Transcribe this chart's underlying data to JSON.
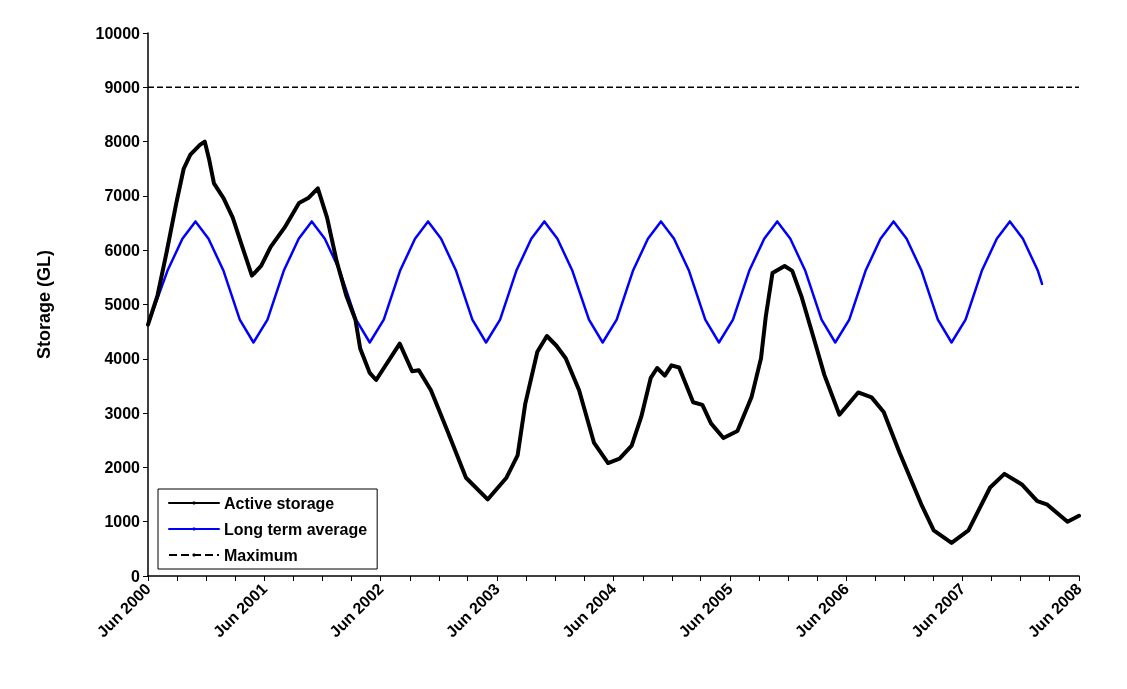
{
  "chart_data": {
    "type": "line",
    "ylabel": "Storage (GL)",
    "xlim": [
      "2000-06-01",
      "2008-06-01"
    ],
    "ylim": [
      0,
      10000
    ],
    "yticks": [
      0,
      1000,
      2000,
      3000,
      4000,
      5000,
      6000,
      7000,
      8000,
      9000,
      10000
    ],
    "xticks": [
      {
        "value": "2000-06-01",
        "label": "Jun 2000"
      },
      {
        "value": "2000-09-01",
        "label": null
      },
      {
        "value": "2000-12-01",
        "label": null
      },
      {
        "value": "2001-03-01",
        "label": null
      },
      {
        "value": "2001-06-01",
        "label": "Jun 2001"
      },
      {
        "value": "2001-09-01",
        "label": null
      },
      {
        "value": "2001-12-01",
        "label": null
      },
      {
        "value": "2002-03-01",
        "label": null
      },
      {
        "value": "2002-06-01",
        "label": "Jun 2002"
      },
      {
        "value": "2002-09-01",
        "label": null
      },
      {
        "value": "2002-12-01",
        "label": null
      },
      {
        "value": "2003-03-01",
        "label": null
      },
      {
        "value": "2003-06-01",
        "label": "Jun 2003"
      },
      {
        "value": "2003-09-01",
        "label": null
      },
      {
        "value": "2003-12-01",
        "label": null
      },
      {
        "value": "2004-03-01",
        "label": null
      },
      {
        "value": "2004-06-01",
        "label": "Jun 2004"
      },
      {
        "value": "2004-09-01",
        "label": null
      },
      {
        "value": "2004-12-01",
        "label": null
      },
      {
        "value": "2005-03-01",
        "label": null
      },
      {
        "value": "2005-06-01",
        "label": "Jun 2005"
      },
      {
        "value": "2005-09-01",
        "label": null
      },
      {
        "value": "2005-12-01",
        "label": null
      },
      {
        "value": "2006-03-01",
        "label": null
      },
      {
        "value": "2006-06-01",
        "label": "Jun 2006"
      },
      {
        "value": "2006-09-01",
        "label": null
      },
      {
        "value": "2006-12-01",
        "label": null
      },
      {
        "value": "2007-03-01",
        "label": null
      },
      {
        "value": "2007-06-01",
        "label": "Jun 2007"
      },
      {
        "value": "2007-09-01",
        "label": null
      },
      {
        "value": "2007-12-01",
        "label": null
      },
      {
        "value": "2008-03-01",
        "label": null
      },
      {
        "value": "2008-06-01",
        "label": "Jun 2008"
      }
    ],
    "grid": false,
    "legend": "bottom left",
    "marker": "none",
    "ref_lines": [
      {
        "axis": "y",
        "value": 9000,
        "label": "Maximum",
        "color": "#000000",
        "line_style": "dashed"
      }
    ],
    "series": [
      {
        "name": "Active storage",
        "color": "#000000",
        "x": [
          "2000-06-01",
          "2000-07-01",
          "2000-07-30",
          "2000-08-29",
          "2000-09-21",
          "2000-10-12",
          "2000-11-11",
          "2000-11-26",
          "2000-12-10",
          "2000-12-25",
          "2001-01-24",
          "2001-02-22",
          "2001-03-24",
          "2001-04-08",
          "2001-04-23",
          "2001-05-22",
          "2001-06-21",
          "2001-08-04",
          "2001-09-18",
          "2001-10-17",
          "2001-11-16",
          "2001-12-15",
          "2002-01-14",
          "2002-02-13",
          "2002-03-14",
          "2002-03-29",
          "2002-04-28",
          "2002-05-18",
          "2002-07-31",
          "2002-09-08",
          "2002-09-29",
          "2002-11-06",
          "2002-12-26",
          "2003-02-24",
          "2003-05-03",
          "2003-07-01",
          "2003-08-05",
          "2003-08-29",
          "2003-10-06",
          "2003-11-05",
          "2003-12-05",
          "2004-01-03",
          "2004-02-14",
          "2004-04-01",
          "2004-05-15",
          "2004-06-20",
          "2004-07-28",
          "2004-08-27",
          "2004-09-26",
          "2004-10-16",
          "2004-11-09",
          "2004-11-30",
          "2004-12-24",
          "2005-02-06",
          "2005-03-07",
          "2005-04-03",
          "2005-05-12",
          "2005-06-25",
          "2005-08-08",
          "2005-09-07",
          "2005-09-22",
          "2005-10-13",
          "2005-11-20",
          "2005-12-14",
          "2006-01-13",
          "2006-02-23",
          "2006-03-25",
          "2006-05-11",
          "2006-07-09",
          "2006-08-20",
          "2006-09-27",
          "2006-11-16",
          "2007-01-23",
          "2007-03-03",
          "2007-04-28",
          "2007-06-20",
          "2007-08-27",
          "2007-10-11",
          "2007-12-06",
          "2008-01-22",
          "2008-02-21",
          "2008-04-26",
          "2008-06-01"
        ],
        "values": [
          4630,
          5170,
          5980,
          6870,
          7500,
          7760,
          7940,
          8000,
          7670,
          7230,
          6960,
          6600,
          6060,
          5800,
          5530,
          5710,
          6060,
          6420,
          6870,
          6960,
          7140,
          6600,
          5800,
          5170,
          4720,
          4190,
          3740,
          3610,
          4280,
          3770,
          3790,
          3420,
          2700,
          1810,
          1410,
          1810,
          2220,
          3170,
          4130,
          4420,
          4240,
          4010,
          3420,
          2450,
          2080,
          2160,
          2400,
          2930,
          3650,
          3830,
          3690,
          3880,
          3840,
          3200,
          3150,
          2810,
          2540,
          2670,
          3290,
          4010,
          4780,
          5580,
          5710,
          5620,
          5130,
          4310,
          3700,
          2970,
          3380,
          3290,
          3020,
          2270,
          1320,
          840,
          610,
          840,
          1630,
          1880,
          1680,
          1380,
          1320,
          1000,
          1110
        ]
      },
      {
        "name": "Long term average",
        "color": "#0000ff",
        "x": [
          "2000-06-01",
          "2000-08-01",
          "2000-09-17",
          "2000-10-28",
          "2000-12-08",
          "2001-01-24",
          "2001-03-16",
          "2001-04-28",
          "2001-06-11",
          "2001-08-01",
          "2001-09-17",
          "2001-10-28",
          "2001-12-08",
          "2002-01-24",
          "2002-03-16",
          "2002-04-28",
          "2002-06-11",
          "2002-08-01",
          "2002-09-17",
          "2002-10-28",
          "2002-12-08",
          "2003-01-24",
          "2003-03-16",
          "2003-04-28",
          "2003-06-11",
          "2003-08-01",
          "2003-09-17",
          "2003-10-28",
          "2003-12-08",
          "2004-01-24",
          "2004-03-16",
          "2004-04-28",
          "2004-06-11",
          "2004-08-01",
          "2004-09-17",
          "2004-10-28",
          "2004-12-08",
          "2005-01-24",
          "2005-03-16",
          "2005-04-28",
          "2005-06-11",
          "2005-08-01",
          "2005-09-17",
          "2005-10-28",
          "2005-12-08",
          "2006-01-24",
          "2006-03-16",
          "2006-04-28",
          "2006-06-11",
          "2006-08-01",
          "2006-09-17",
          "2006-10-28",
          "2006-12-08",
          "2007-01-24",
          "2007-03-16",
          "2007-04-28",
          "2007-06-11",
          "2007-08-01",
          "2007-09-17",
          "2007-10-28",
          "2007-12-08",
          "2008-01-24",
          "2008-02-06"
        ],
        "values": [
          4630,
          5620,
          6210,
          6530,
          6210,
          5620,
          4720,
          4300,
          4720,
          5620,
          6210,
          6530,
          6210,
          5620,
          4720,
          4300,
          4720,
          5620,
          6210,
          6530,
          6210,
          5620,
          4720,
          4300,
          4720,
          5620,
          6210,
          6530,
          6210,
          5620,
          4720,
          4300,
          4720,
          5620,
          6210,
          6530,
          6210,
          5620,
          4720,
          4300,
          4720,
          5620,
          6210,
          6530,
          6210,
          5620,
          4720,
          4300,
          4720,
          5620,
          6210,
          6530,
          6210,
          5620,
          4720,
          4300,
          4720,
          5620,
          6210,
          6530,
          6210,
          5620,
          5380
        ]
      }
    ]
  }
}
